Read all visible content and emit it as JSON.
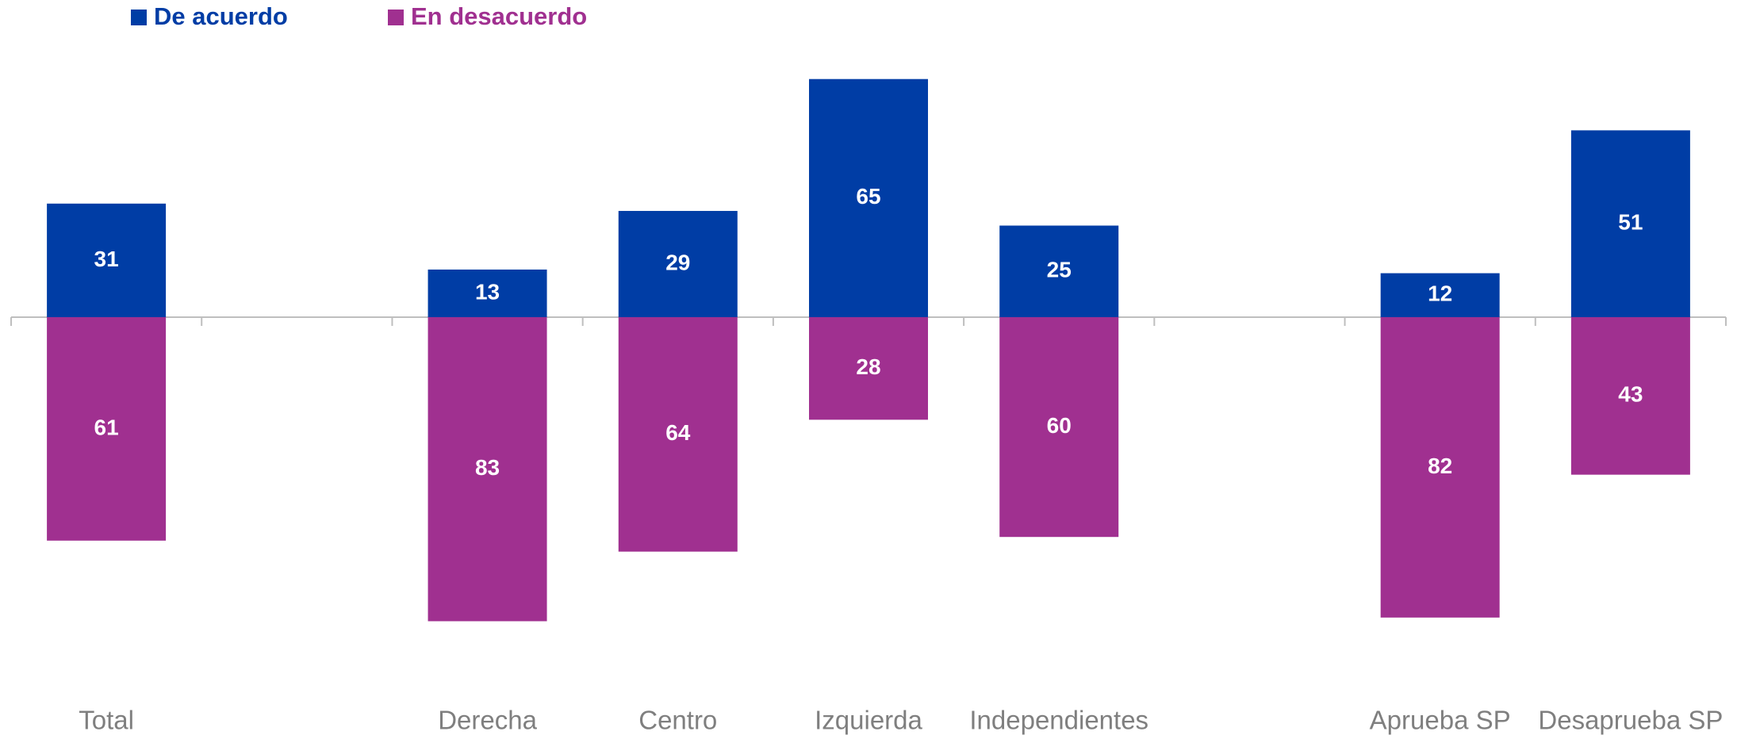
{
  "chart_data": {
    "type": "diverging_bar",
    "categories": [
      "Total",
      null,
      "Derecha",
      "Centro",
      "Izquierda",
      "Independientes",
      null,
      "Aprueba SP",
      "Desaprueba SP"
    ],
    "series": [
      {
        "name": "De acuerdo",
        "color": "#003da5",
        "values": [
          31,
          null,
          13,
          29,
          65,
          25,
          null,
          12,
          51
        ]
      },
      {
        "name": "En desacuerdo",
        "color": "#a03090",
        "values": [
          61,
          null,
          83,
          64,
          28,
          60,
          null,
          82,
          43
        ]
      }
    ],
    "legend": "top-left"
  }
}
